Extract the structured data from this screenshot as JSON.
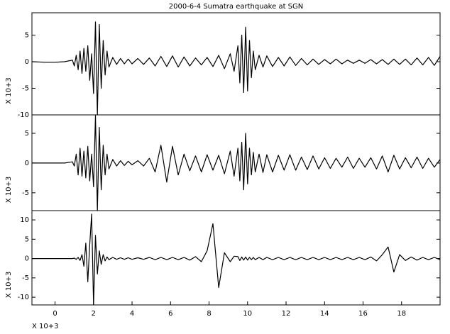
{
  "chart_data": [
    {
      "type": "line",
      "title": "2000-6-4 Sumatra earthquake at SGN",
      "y_label": "X 10+3",
      "x": [
        -1.2,
        -0.5,
        0,
        0.5,
        0.9,
        1.0,
        1.1,
        1.2,
        1.3,
        1.4,
        1.5,
        1.6,
        1.7,
        1.8,
        1.9,
        2.0,
        2.1,
        2.2,
        2.3,
        2.4,
        2.5,
        2.6,
        2.7,
        2.8,
        3.0,
        3.2,
        3.4,
        3.6,
        3.8,
        4.0,
        4.3,
        4.6,
        4.9,
        5.2,
        5.5,
        5.8,
        6.1,
        6.4,
        6.7,
        7.0,
        7.3,
        7.6,
        7.9,
        8.2,
        8.5,
        8.8,
        9.1,
        9.3,
        9.5,
        9.6,
        9.7,
        9.8,
        9.9,
        10.0,
        10.1,
        10.2,
        10.3,
        10.4,
        10.6,
        10.8,
        11.0,
        11.3,
        11.6,
        11.9,
        12.2,
        12.5,
        12.8,
        13.1,
        13.4,
        13.7,
        14.0,
        14.3,
        14.6,
        14.9,
        15.2,
        15.5,
        15.8,
        16.1,
        16.4,
        16.7,
        17.0,
        17.3,
        17.6,
        17.9,
        18.2,
        18.5,
        18.8,
        19.1,
        19.4,
        19.7,
        20.0
      ],
      "series": [
        {
          "color": "#000000",
          "values": [
            0,
            -0.1,
            -0.1,
            0,
            0.3,
            -0.8,
            1.2,
            -1.5,
            2.0,
            -2.2,
            2.5,
            -1.8,
            3.0,
            -3.5,
            1.5,
            -6.0,
            7.5,
            -10.0,
            7.0,
            -5.0,
            4.0,
            -2.5,
            2.0,
            -1.0,
            0.8,
            -0.5,
            0.6,
            -0.4,
            0.5,
            -0.4,
            0.6,
            -0.5,
            0.7,
            -0.8,
            1.0,
            -0.9,
            1.1,
            -1.0,
            0.9,
            -0.8,
            0.7,
            -0.6,
            0.8,
            -0.9,
            1.2,
            -1.3,
            1.5,
            -1.8,
            3.0,
            -4.0,
            5.0,
            -5.8,
            6.5,
            -5.5,
            4.0,
            -3.0,
            2.0,
            -1.5,
            1.2,
            -1.0,
            1.1,
            -0.9,
            0.8,
            -0.8,
            0.9,
            -0.7,
            0.6,
            -0.6,
            0.5,
            -0.5,
            0.4,
            -0.4,
            0.5,
            -0.4,
            0.3,
            -0.3,
            0.3,
            -0.3,
            0.4,
            -0.4,
            0.4,
            -0.5,
            0.5,
            -0.5,
            0.5,
            -0.6,
            0.7,
            -0.6,
            0.8,
            -0.7,
            1.0
          ]
        }
      ],
      "xlim": [
        -1.2,
        20.0
      ],
      "ylim": [
        -10,
        9.2
      ],
      "yticks": [
        -10,
        -5,
        0,
        5
      ]
    },
    {
      "type": "line",
      "y_label": "X 10+3",
      "x": [
        -1.2,
        -0.5,
        0,
        0.5,
        0.9,
        1.0,
        1.1,
        1.2,
        1.3,
        1.4,
        1.5,
        1.6,
        1.7,
        1.8,
        1.9,
        2.0,
        2.1,
        2.2,
        2.3,
        2.4,
        2.5,
        2.6,
        2.7,
        2.8,
        3.0,
        3.2,
        3.4,
        3.6,
        3.8,
        4.0,
        4.3,
        4.6,
        4.9,
        5.2,
        5.5,
        5.8,
        6.1,
        6.4,
        6.7,
        7.0,
        7.3,
        7.6,
        7.9,
        8.2,
        8.5,
        8.8,
        9.1,
        9.3,
        9.5,
        9.6,
        9.7,
        9.8,
        9.9,
        10.0,
        10.1,
        10.2,
        10.3,
        10.4,
        10.6,
        10.8,
        11.0,
        11.3,
        11.6,
        11.9,
        12.2,
        12.5,
        12.8,
        13.1,
        13.4,
        13.7,
        14.0,
        14.3,
        14.6,
        14.9,
        15.2,
        15.5,
        15.8,
        16.1,
        16.4,
        16.7,
        17.0,
        17.3,
        17.6,
        17.9,
        18.2,
        18.5,
        18.8,
        19.1,
        19.4,
        19.7,
        20.0
      ],
      "series": [
        {
          "color": "#000000",
          "values": [
            0,
            0,
            0,
            0,
            0.2,
            -0.5,
            1.5,
            -2.0,
            2.5,
            -2.2,
            2.0,
            -2.5,
            2.8,
            -3.0,
            1.5,
            -4.0,
            8.0,
            -8.0,
            6.0,
            -4.5,
            3.0,
            -2.0,
            1.5,
            -1.0,
            0.6,
            -0.5,
            0.4,
            -0.4,
            0.3,
            -0.3,
            0.4,
            -0.5,
            0.8,
            -1.5,
            3.0,
            -3.2,
            2.8,
            -2.0,
            1.5,
            -1.3,
            1.2,
            -1.5,
            1.4,
            -1.2,
            1.3,
            -1.8,
            2.0,
            -2.2,
            2.5,
            -3.0,
            3.5,
            -4.5,
            5.0,
            -3.5,
            2.5,
            -2.0,
            1.8,
            -1.5,
            1.5,
            -1.6,
            1.4,
            -1.5,
            1.3,
            -1.2,
            1.4,
            -1.2,
            1.0,
            -1.1,
            1.2,
            -1.0,
            0.9,
            -0.9,
            0.8,
            -0.7,
            1.0,
            -0.9,
            0.8,
            -0.7,
            0.9,
            -1.0,
            1.2,
            -1.5,
            1.3,
            -1.0,
            0.9,
            -0.8,
            1.0,
            -0.9,
            0.8,
            -0.7,
            0.6
          ]
        }
      ],
      "xlim": [
        -1.2,
        20.0
      ],
      "ylim": [
        -8,
        8.1
      ],
      "yticks": [
        -5,
        0,
        5
      ]
    },
    {
      "type": "line",
      "y_label": "X 10+3",
      "x_label": "X 10+3",
      "x": [
        -1.2,
        -0.5,
        0,
        0.5,
        0.9,
        1.0,
        1.1,
        1.2,
        1.3,
        1.4,
        1.5,
        1.6,
        1.7,
        1.8,
        1.9,
        2.0,
        2.1,
        2.2,
        2.3,
        2.4,
        2.5,
        2.6,
        2.7,
        2.8,
        3.0,
        3.2,
        3.4,
        3.6,
        3.8,
        4.0,
        4.3,
        4.6,
        4.9,
        5.2,
        5.5,
        5.8,
        6.1,
        6.4,
        6.7,
        7.0,
        7.3,
        7.6,
        7.9,
        8.2,
        8.5,
        8.8,
        9.1,
        9.3,
        9.5,
        9.6,
        9.7,
        9.8,
        9.9,
        10.0,
        10.1,
        10.2,
        10.3,
        10.4,
        10.6,
        10.8,
        11.0,
        11.3,
        11.6,
        11.9,
        12.2,
        12.5,
        12.8,
        13.1,
        13.4,
        13.7,
        14.0,
        14.3,
        14.6,
        14.9,
        15.2,
        15.5,
        15.8,
        16.1,
        16.4,
        16.7,
        17.0,
        17.3,
        17.6,
        17.9,
        18.2,
        18.5,
        18.8,
        19.1,
        19.4,
        19.7,
        20.0
      ],
      "series": [
        {
          "color": "#000000",
          "values": [
            0,
            0,
            0,
            0,
            0,
            0.1,
            -0.2,
            0.3,
            -0.5,
            1.0,
            -2.0,
            4.0,
            -6.0,
            3.5,
            11.5,
            -12.0,
            6.0,
            -4.0,
            2.0,
            -1.5,
            1.0,
            -0.6,
            0.4,
            -0.3,
            0.3,
            -0.2,
            0.2,
            -0.2,
            0.2,
            -0.2,
            0.2,
            -0.2,
            0.3,
            -0.3,
            0.3,
            -0.3,
            0.3,
            -0.3,
            0.3,
            -0.4,
            0.5,
            -0.8,
            2.0,
            9.0,
            -7.5,
            1.5,
            -0.8,
            0.6,
            0.5,
            -0.5,
            0.4,
            -0.4,
            0.4,
            -0.4,
            0.3,
            -0.3,
            0.3,
            -0.3,
            0.3,
            -0.3,
            0.3,
            -0.3,
            0.3,
            -0.3,
            0.3,
            -0.3,
            0.3,
            -0.3,
            0.3,
            -0.3,
            0.3,
            -0.3,
            0.3,
            -0.3,
            0.3,
            -0.3,
            0.3,
            -0.3,
            0.4,
            -0.6,
            1.0,
            3.0,
            -3.5,
            1.0,
            -0.5,
            0.4,
            -0.4,
            0.3,
            -0.3,
            0.3,
            -0.3
          ]
        }
      ],
      "xlim": [
        -1.2,
        20.0
      ],
      "ylim": [
        -12,
        12.4
      ],
      "yticks": [
        -10,
        -5,
        0,
        5,
        10
      ],
      "xticks": [
        0,
        2,
        4,
        6,
        8,
        10,
        12,
        14,
        16,
        18
      ]
    }
  ]
}
